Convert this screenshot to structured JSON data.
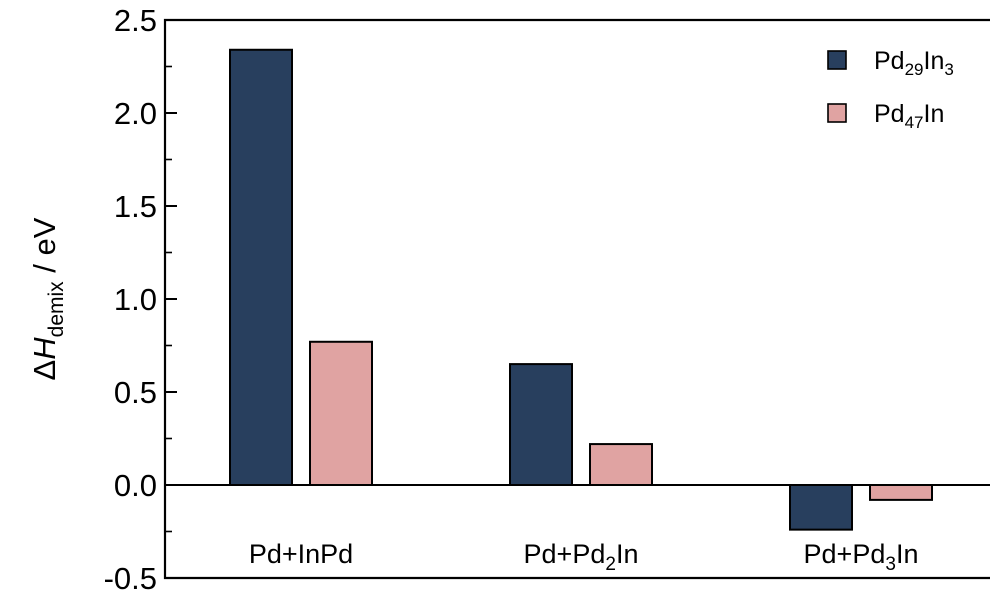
{
  "chart_data": {
    "type": "bar",
    "categories": [
      "Pd+InPd",
      "Pd+Pd₂In",
      "Pd+Pd₃In"
    ],
    "category_parts": [
      {
        "base": "Pd+InPd",
        "sub": "",
        "tail": ""
      },
      {
        "base": "Pd+Pd",
        "sub": "2",
        "tail": "In"
      },
      {
        "base": "Pd+Pd",
        "sub": "3",
        "tail": "In"
      }
    ],
    "series": [
      {
        "name": "Pd₂₉In₃",
        "name_parts": {
          "base": "Pd",
          "sub": "29",
          "tail": "In",
          "sub2": "3"
        },
        "color": "#283f5e",
        "values": [
          2.34,
          0.65,
          -0.24
        ]
      },
      {
        "name": "Pd₄₇In",
        "name_parts": {
          "base": "Pd",
          "sub": "47",
          "tail": "In",
          "sub2": ""
        },
        "color": "#e0a3a2",
        "values": [
          0.77,
          0.22,
          -0.08
        ]
      }
    ],
    "ylabel": {
      "delta": "Δ",
      "var": "H",
      "sub": "demix",
      "unit": " / eV"
    },
    "ylim": [
      -0.5,
      2.5
    ],
    "yticks": [
      "-0.5",
      "0.0",
      "0.5",
      "1.0",
      "1.5",
      "2.0",
      "2.5"
    ],
    "legend_position": "top-right",
    "grid": false
  }
}
